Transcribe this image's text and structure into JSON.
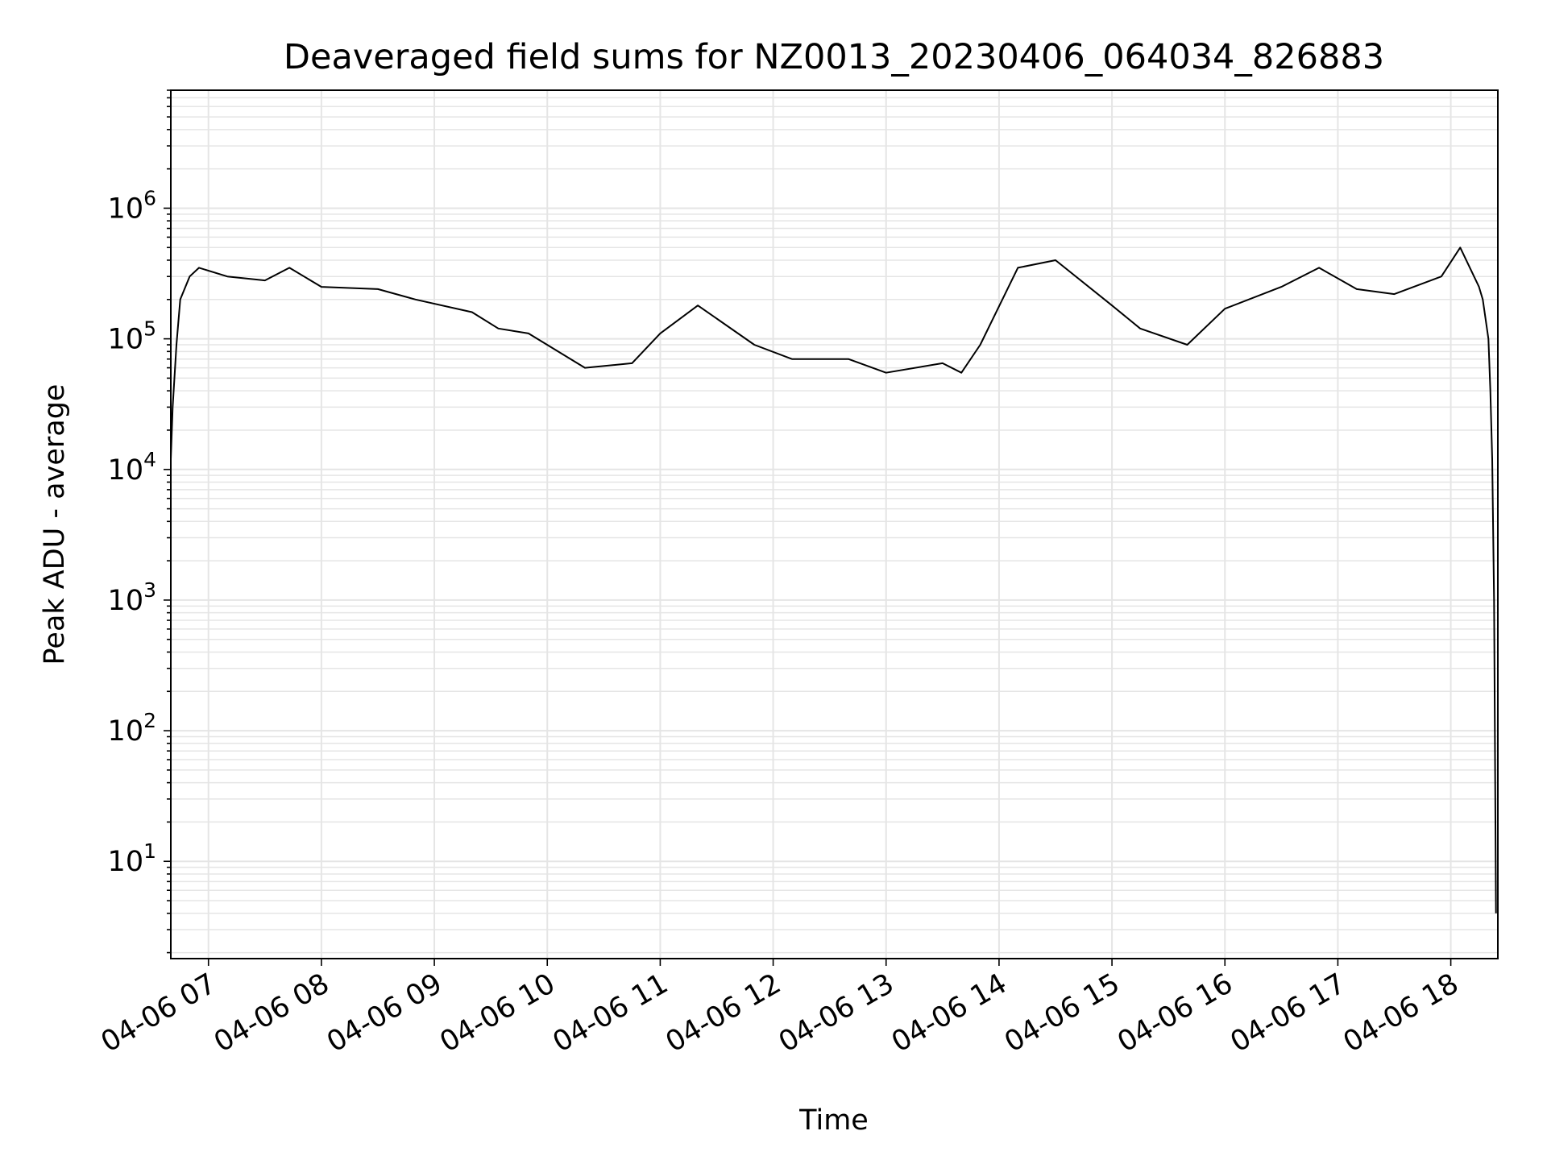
{
  "chart_data": {
    "type": "line",
    "title": "Deaveraged field sums for NZ0013_20230406_064034_826883",
    "xlabel": "Time",
    "ylabel": "Peak ADU - average",
    "yscale": "log",
    "xlim": [
      "2023-04-06 06:40",
      "2023-04-06 18:25"
    ],
    "ylim": [
      1.8,
      8000000
    ],
    "grid": true,
    "grid_minor": true,
    "line_color": "#000000",
    "grid_color": "#e5e5e5",
    "x_ticks": [
      "2023-04-06 07:00",
      "2023-04-06 08:00",
      "2023-04-06 09:00",
      "2023-04-06 10:00",
      "2023-04-06 11:00",
      "2023-04-06 12:00",
      "2023-04-06 13:00",
      "2023-04-06 14:00",
      "2023-04-06 15:00",
      "2023-04-06 16:00",
      "2023-04-06 17:00",
      "2023-04-06 18:00"
    ],
    "x_tick_labels": [
      "04-06 07",
      "04-06 08",
      "04-06 09",
      "04-06 10",
      "04-06 11",
      "04-06 12",
      "04-06 13",
      "04-06 14",
      "04-06 15",
      "04-06 16",
      "04-06 17",
      "04-06 18"
    ],
    "y_ticks": [
      {
        "value": 10,
        "base": "10",
        "exp": "1"
      },
      {
        "value": 100,
        "base": "10",
        "exp": "2"
      },
      {
        "value": 1000,
        "base": "10",
        "exp": "3"
      },
      {
        "value": 10000,
        "base": "10",
        "exp": "4"
      },
      {
        "value": 100000,
        "base": "10",
        "exp": "5"
      },
      {
        "value": 1000000,
        "base": "10",
        "exp": "6"
      }
    ],
    "series": [
      {
        "x": [
          "2023-04-06 06:40",
          "2023-04-06 06:41",
          "2023-04-06 06:43",
          "2023-04-06 06:45",
          "2023-04-06 06:50",
          "2023-04-06 06:55",
          "2023-04-06 07:10",
          "2023-04-06 07:30",
          "2023-04-06 07:43",
          "2023-04-06 08:00",
          "2023-04-06 08:30",
          "2023-04-06 08:50",
          "2023-04-06 09:20",
          "2023-04-06 09:34",
          "2023-04-06 09:50",
          "2023-04-06 10:20",
          "2023-04-06 10:45",
          "2023-04-06 11:00",
          "2023-04-06 11:20",
          "2023-04-06 11:50",
          "2023-04-06 12:10",
          "2023-04-06 12:40",
          "2023-04-06 13:00",
          "2023-04-06 13:30",
          "2023-04-06 13:40",
          "2023-04-06 13:50",
          "2023-04-06 14:10",
          "2023-04-06 14:30",
          "2023-04-06 15:00",
          "2023-04-06 15:15",
          "2023-04-06 15:40",
          "2023-04-06 16:00",
          "2023-04-06 16:30",
          "2023-04-06 16:50",
          "2023-04-06 17:10",
          "2023-04-06 17:30",
          "2023-04-06 17:55",
          "2023-04-06 18:05",
          "2023-04-06 18:15",
          "2023-04-06 18:17",
          "2023-04-06 18:20",
          "2023-04-06 18:21",
          "2023-04-06 18:22",
          "2023-04-06 18:23",
          "2023-04-06 18:24"
        ],
        "values": [
          12000,
          30000,
          90000,
          200000,
          300000,
          350000,
          300000,
          280000,
          350000,
          250000,
          240000,
          200000,
          160000,
          120000,
          110000,
          60000,
          65000,
          110000,
          180000,
          90000,
          70000,
          70000,
          55000,
          65000,
          55000,
          90000,
          350000,
          400000,
          180000,
          120000,
          90000,
          170000,
          250000,
          350000,
          240000,
          220000,
          300000,
          500000,
          250000,
          200000,
          100000,
          40000,
          12000,
          1000,
          4
        ]
      }
    ]
  }
}
